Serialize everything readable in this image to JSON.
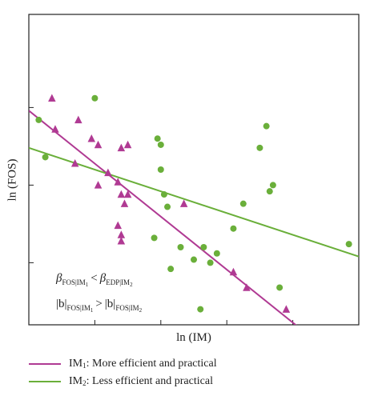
{
  "chart_data": {
    "type": "scatter",
    "title": "",
    "xlabel": "ln (IM)",
    "ylabel": "ln (FOS)",
    "xlim": [
      0,
      100
    ],
    "ylim": [
      0,
      100
    ],
    "grid": false,
    "legend_position": "bottom",
    "series": [
      {
        "name": "IM1",
        "marker": "triangle",
        "color": "#b03a93",
        "points": [
          [
            7,
            73
          ],
          [
            8,
            63
          ],
          [
            15,
            66
          ],
          [
            14,
            52
          ],
          [
            19,
            60
          ],
          [
            21,
            58
          ],
          [
            21,
            45
          ],
          [
            24,
            49
          ],
          [
            27,
            46
          ],
          [
            28,
            57
          ],
          [
            28,
            42
          ],
          [
            29,
            39
          ],
          [
            30,
            58
          ],
          [
            30,
            42
          ],
          [
            27,
            32
          ],
          [
            28,
            29
          ],
          [
            28,
            27
          ],
          [
            47,
            39
          ],
          [
            62,
            17
          ],
          [
            66,
            12
          ],
          [
            78,
            5
          ]
        ],
        "fit": [
          [
            0,
            69
          ],
          [
            82,
            -1
          ]
        ]
      },
      {
        "name": "IM2",
        "marker": "circle",
        "color": "#6aaf3a",
        "points": [
          [
            3,
            66
          ],
          [
            5,
            54
          ],
          [
            20,
            73
          ],
          [
            40,
            50
          ],
          [
            38,
            28
          ],
          [
            39,
            60
          ],
          [
            40,
            58
          ],
          [
            41,
            42
          ],
          [
            42,
            38
          ],
          [
            43,
            18
          ],
          [
            46,
            25
          ],
          [
            50,
            21
          ],
          [
            52,
            5
          ],
          [
            53,
            25
          ],
          [
            55,
            20
          ],
          [
            57,
            23
          ],
          [
            62,
            31
          ],
          [
            65,
            39
          ],
          [
            70,
            57
          ],
          [
            72,
            64
          ],
          [
            73,
            43
          ],
          [
            74,
            45
          ],
          [
            76,
            12
          ],
          [
            97,
            26
          ]
        ],
        "fit": [
          [
            0,
            57
          ],
          [
            100,
            22
          ]
        ]
      }
    ],
    "annotations": {
      "beta_line": {
        "beta": "β",
        "fos_im1": "FOS|IM",
        "sub1": "1",
        "lt": "<",
        "edp_im2": "EDP|IM",
        "sub2": "2"
      },
      "b_line": {
        "bar_b": "|b|",
        "fos_im1": "FOS|IM",
        "sub1": "1",
        "gt": ">",
        "fos_im2": "FOS|IM",
        "sub2": "2"
      }
    },
    "legend": [
      {
        "series": "IM1",
        "prefix": "IM",
        "sub": "1",
        "text": ": More efficient and practical",
        "color": "#b03a93"
      },
      {
        "series": "IM2",
        "prefix": "IM",
        "sub": "2",
        "text": ": Less efficient and practical",
        "color": "#6aaf3a"
      }
    ]
  }
}
